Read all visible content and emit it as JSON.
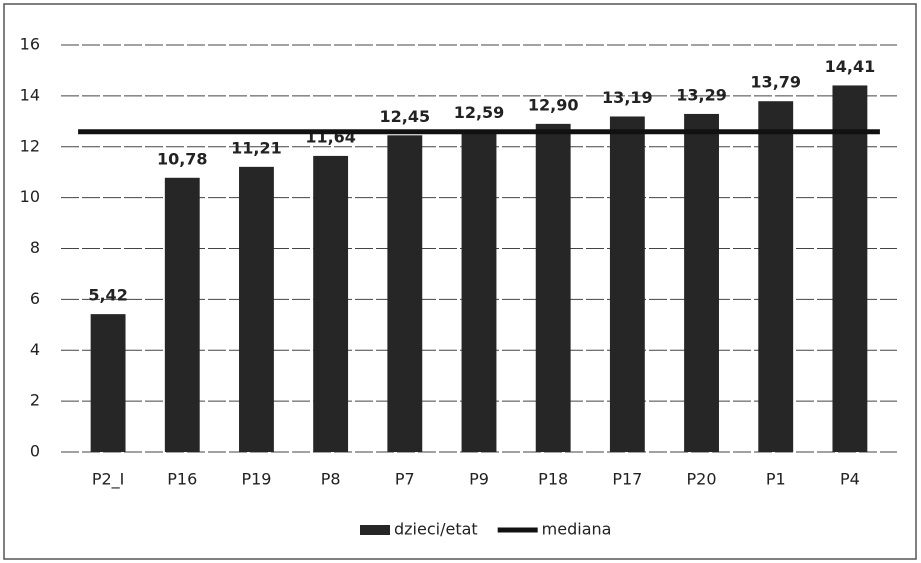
{
  "chart_data": {
    "type": "bar",
    "categories": [
      "P2_I",
      "P16",
      "P19",
      "P8",
      "P7",
      "P9",
      "P18",
      "P17",
      "P20",
      "P1",
      "P4"
    ],
    "series": [
      {
        "name": "dzieci/etat",
        "type": "bar",
        "color": "#262626",
        "values": [
          5.42,
          10.78,
          11.21,
          11.64,
          12.45,
          12.59,
          12.9,
          13.19,
          13.29,
          13.79,
          14.41
        ],
        "value_labels": [
          "5,42",
          "10,78",
          "11,21",
          "11,64",
          "12,45",
          "12,59",
          "12,90",
          "13,19",
          "13,29",
          "13,79",
          "14,41"
        ]
      },
      {
        "name": "mediana",
        "type": "line",
        "color": "#111111",
        "values": [
          12.59,
          12.59,
          12.59,
          12.59,
          12.59,
          12.59,
          12.59,
          12.59,
          12.59,
          12.59,
          12.59
        ]
      }
    ],
    "ylim": [
      0,
      16
    ],
    "yticks": [
      0,
      2,
      4,
      6,
      8,
      10,
      12,
      14,
      16
    ],
    "grid": true,
    "legend": "bottom"
  }
}
